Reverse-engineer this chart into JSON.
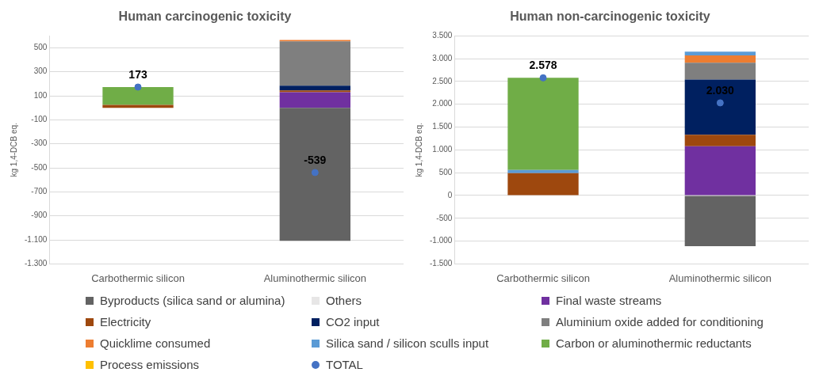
{
  "chart_data": [
    {
      "type": "bar",
      "stacked": true,
      "title": "Human carcinogenic toxicity",
      "ylabel": "kg 1,4-DCB eq.",
      "categories": [
        "Carbothermic silicon",
        "Aluminothermic silicon"
      ],
      "ylim": [
        -1300,
        600
      ],
      "yticks": [
        {
          "value": -1300,
          "label": "-1.300"
        },
        {
          "value": -1100,
          "label": "-1.100"
        },
        -900,
        -700,
        -500,
        -300,
        -100,
        100,
        300,
        500
      ],
      "grid": "y",
      "legend": "bottom",
      "series": [
        {
          "name": "Byproducts (silica sand or alumina)",
          "color": "#636363",
          "values": [
            null,
            -1107
          ]
        },
        {
          "name": "Others",
          "color": "#e7e6e6",
          "values": [
            null,
            null
          ]
        },
        {
          "name": "Final waste streams",
          "color": "#7030a0",
          "values": [
            null,
            130
          ]
        },
        {
          "name": "Electricity",
          "color": "#9e480e",
          "values": [
            25,
            15
          ]
        },
        {
          "name": "CO2 input",
          "color": "#002060",
          "values": [
            null,
            40
          ]
        },
        {
          "name": "Aluminium oxide added for conditioning",
          "color": "#7f7f7f",
          "values": [
            null,
            368
          ]
        },
        {
          "name": "Quicklime consumed",
          "color": "#ed7d31",
          "values": [
            null,
            12
          ]
        },
        {
          "name": "Silica sand / silicon sculls input",
          "color": "#5b9bd5",
          "values": [
            null,
            null
          ]
        },
        {
          "name": "Carbon or aluminothermic reductants",
          "color": "#70ad47",
          "values": [
            148,
            null
          ]
        },
        {
          "name": "Process emissions",
          "color": "#ffc000",
          "values": [
            null,
            null
          ]
        },
        {
          "name": "TOTAL",
          "type": "scatter",
          "marker": "circle",
          "color": "#4472c4",
          "values": [
            173,
            -539
          ],
          "value_labels": [
            "173",
            "-539"
          ]
        }
      ]
    },
    {
      "type": "bar",
      "stacked": true,
      "title": "Human non-carcinogenic toxicity",
      "ylabel": "kg 1,4-DCB eq.",
      "categories": [
        "Carbothermic silicon",
        "Aluminothermic silicon"
      ],
      "ylim": [
        -1500,
        3500
      ],
      "yticks": [
        {
          "value": -1500,
          "label": "-1.500"
        },
        {
          "value": -1000,
          "label": "-1.000"
        },
        -500,
        0,
        500,
        {
          "value": 1000,
          "label": "1.000"
        },
        {
          "value": 1500,
          "label": "1.500"
        },
        {
          "value": 2000,
          "label": "2.000"
        },
        {
          "value": 2500,
          "label": "2.500"
        },
        {
          "value": 3000,
          "label": "3.000"
        },
        {
          "value": 3500,
          "label": "3.500"
        }
      ],
      "grid": "y",
      "series": [
        {
          "color": "#636363",
          "values": [
            null,
            -1110
          ]
        },
        {
          "color": "#e7e6e6",
          "values": [
            null,
            null
          ]
        },
        {
          "color": "#7030a0",
          "values": [
            null,
            1080
          ]
        },
        {
          "color": "#9e480e",
          "values": [
            490,
            250
          ]
        },
        {
          "color": "#002060",
          "values": [
            null,
            1210
          ]
        },
        {
          "color": "#7f7f7f",
          "values": [
            null,
            370
          ]
        },
        {
          "color": "#ed7d31",
          "values": [
            null,
            160
          ]
        },
        {
          "color": "#5b9bd5",
          "values": [
            70,
            80
          ]
        },
        {
          "color": "#70ad47",
          "values": [
            2020,
            null
          ]
        },
        {
          "color": "#ffc000",
          "values": [
            null,
            null
          ]
        },
        {
          "type": "scatter",
          "marker": "circle",
          "color": "#4472c4",
          "values": [
            2578,
            2030
          ],
          "value_labels": [
            "2.578",
            "2.030"
          ]
        }
      ]
    }
  ]
}
